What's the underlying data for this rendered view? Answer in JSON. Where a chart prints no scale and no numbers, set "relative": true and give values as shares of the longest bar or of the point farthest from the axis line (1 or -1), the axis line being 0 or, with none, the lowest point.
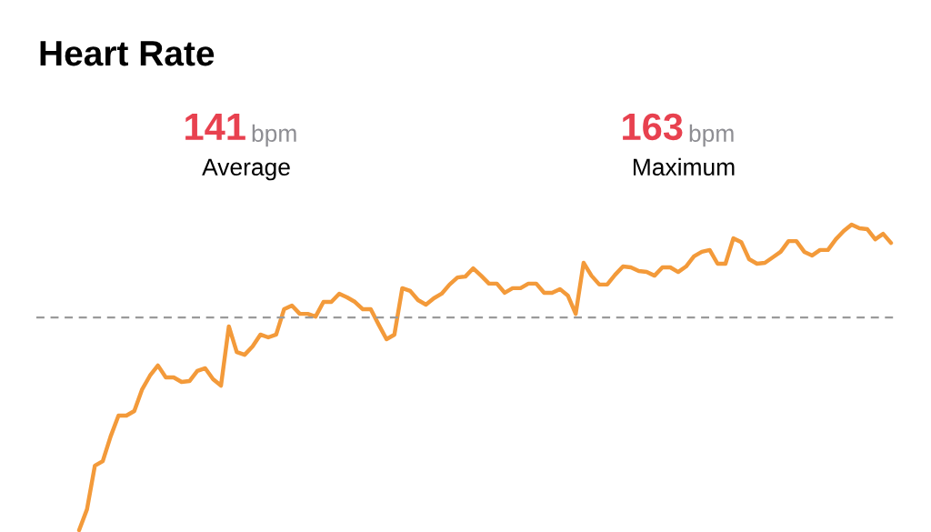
{
  "chart_data": {
    "type": "line",
    "title": "Heart Rate",
    "relative": true,
    "annotations": [
      "141",
      "bpm",
      "Average",
      "163",
      "bpm",
      "Maximum"
    ],
    "categories": [
      null,
      null,
      null,
      null,
      null,
      null,
      null,
      null,
      null,
      null,
      null,
      null,
      null,
      null,
      null,
      null,
      null,
      null,
      null,
      null,
      null,
      null,
      null,
      null,
      null,
      null,
      null,
      null,
      null,
      null,
      null,
      null,
      null,
      null,
      null,
      null,
      null,
      null,
      null,
      null,
      null,
      null,
      null,
      null,
      null,
      null,
      null,
      null,
      null,
      null,
      null,
      null,
      null,
      null,
      null,
      null,
      null,
      null,
      null,
      null,
      null,
      null,
      null,
      null,
      null,
      null,
      null,
      null,
      null,
      null,
      null,
      null,
      null,
      null,
      null,
      null,
      null,
      null,
      null,
      null,
      null,
      null,
      null,
      null,
      null,
      null,
      null,
      null,
      null,
      null,
      null,
      null,
      null,
      null,
      null,
      null,
      null,
      null,
      null,
      null,
      null,
      null,
      null,
      null
    ],
    "series": [
      {
        "color": "#f39a3a",
        "values": [
          0,
          0.068,
          0.211,
          0.226,
          0.307,
          0.375,
          0.375,
          0.39,
          0.461,
          0.506,
          0.539,
          0.5,
          0.5,
          0.485,
          0.488,
          0.521,
          0.53,
          0.494,
          0.473,
          0.667,
          0.583,
          0.574,
          0.601,
          0.64,
          0.631,
          0.64,
          0.723,
          0.735,
          0.708,
          0.708,
          0.699,
          0.747,
          0.747,
          0.774,
          0.762,
          0.747,
          0.723,
          0.723,
          0.673,
          0.625,
          0.64,
          0.792,
          0.783,
          0.753,
          0.738,
          0.759,
          0.774,
          0.804,
          0.827,
          0.83,
          0.857,
          0.833,
          0.807,
          0.807,
          0.777,
          0.792,
          0.792,
          0.807,
          0.807,
          0.777,
          0.777,
          0.789,
          0.768,
          0.708,
          0.875,
          0.833,
          0.804,
          0.804,
          0.836,
          0.863,
          0.86,
          0.848,
          0.845,
          0.833,
          0.86,
          0.86,
          0.845,
          0.863,
          0.896,
          0.911,
          0.917,
          0.872,
          0.872,
          0.955,
          0.943,
          0.887,
          0.872,
          0.875,
          0.893,
          0.911,
          0.946,
          0.946,
          0.911,
          0.899,
          0.917,
          0.917,
          0.952,
          0.979,
          1,
          0.988,
          0.985,
          0.952,
          0.97,
          0.94
        ]
      }
    ],
    "ref_lines": [
      {
        "axis": "y",
        "value": 0.696,
        "color": "#9a9a9a",
        "line_style": "dashed"
      }
    ],
    "legend": false,
    "marker": "none",
    "line_style": "solid"
  }
}
